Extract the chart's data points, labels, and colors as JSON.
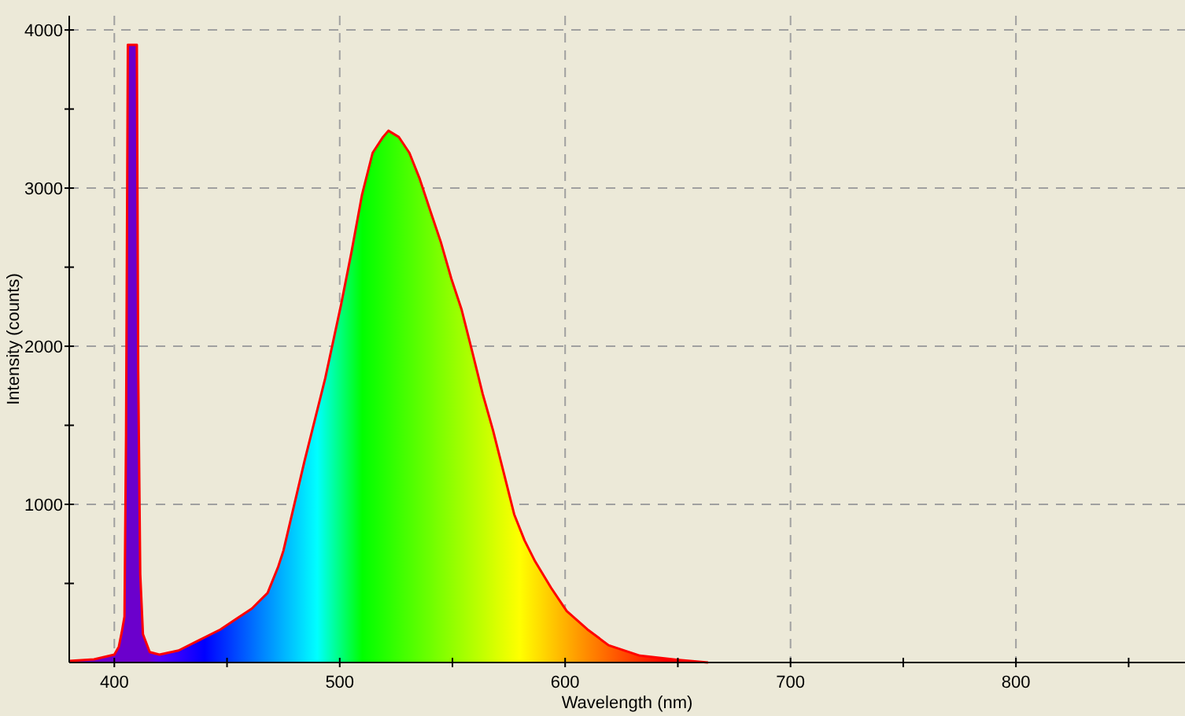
{
  "chart_data": {
    "type": "area",
    "xlabel": "Wavelength (nm)",
    "ylabel": "Intensity (counts)",
    "xlim": [
      380,
      875
    ],
    "ylim": [
      0,
      4090
    ],
    "xticks": [
      400,
      {
        "value": 450,
        "label": null
      },
      500,
      {
        "value": 550,
        "label": null
      },
      600,
      {
        "value": 650,
        "label": null
      },
      700,
      {
        "value": 750,
        "label": null
      },
      800,
      {
        "value": 850,
        "label": null
      }
    ],
    "yticks": [
      {
        "value": 500,
        "label": null
      },
      1000,
      {
        "value": 1500,
        "label": null
      },
      2000,
      {
        "value": 2500,
        "label": null
      },
      3000,
      {
        "value": 3500,
        "label": null
      },
      4000
    ],
    "grid": true,
    "series": [
      {
        "color": "#ff0000",
        "x": [
          380,
          391,
          400,
          402,
          403.3,
          404.5,
          405.2,
          406,
          410,
          410.6,
          411.5,
          412.7,
          415.7,
          420,
          428.5,
          437.8,
          447.1,
          454,
          461,
          468,
          472.7,
          475,
          484.3,
          493.6,
          500.6,
          505.2,
          509.9,
          514.6,
          519.2,
          521.6,
          526.2,
          530.9,
          535.5,
          540.1,
          544.8,
          549.5,
          554.1,
          558.8,
          563.4,
          568,
          572.7,
          577.4,
          582,
          586.7,
          593.7,
          600.7,
          609.9,
          619.3,
          633.2,
          649.5,
          663.4
        ],
        "values": [
          10,
          20,
          50,
          100,
          192,
          290,
          1440,
          3906,
          3906,
          1840,
          560,
          179,
          66,
          50,
          76,
          142,
          209,
          275,
          341,
          440,
          606,
          706,
          1269,
          1799,
          2263,
          2594,
          2959,
          3223,
          3323,
          3363,
          3323,
          3223,
          3058,
          2860,
          2661,
          2428,
          2230,
          1965,
          1700,
          1468,
          1203,
          937,
          772,
          639,
          474,
          325,
          209,
          109,
          43,
          17,
          0
        ]
      }
    ]
  }
}
